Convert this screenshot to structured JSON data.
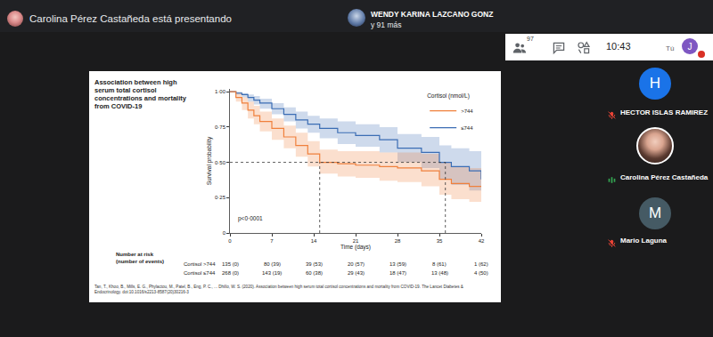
{
  "screen": {
    "presenter_banner": "Carolina Pérez Castañeda está presentando",
    "header_participant": "WENDY KARINA LAZCANO GONZ",
    "header_more": "y 91 más",
    "participant_count": 97,
    "time": "10:43",
    "user_initial": "J",
    "user_label": "Tú",
    "participants": [
      {
        "initial": "H",
        "name": "HECTOR ISLAS RAMIREZ",
        "muted": true
      },
      {
        "name": "Carolina Pérez Castañeda",
        "muted": false
      },
      {
        "initial": "M",
        "name": "Mario Laguna",
        "muted": true
      }
    ]
  },
  "chart_data": {
    "type": "line",
    "title": "Association between high serum total cortisol concentrations and mortality from COVID-19",
    "x_label": "Time (days)",
    "y_label": "Survival probability",
    "x": [
      0,
      1,
      2,
      3,
      4,
      5,
      7,
      9,
      11,
      13,
      15,
      18,
      21,
      25,
      28,
      32,
      35,
      37,
      40,
      42
    ],
    "xlim": [
      0,
      42
    ],
    "xticks": [
      0,
      7,
      14,
      21,
      28,
      35,
      42
    ],
    "ylim": [
      0,
      1.02
    ],
    "yticks": [
      {
        "value": 0,
        "label": "0"
      },
      {
        "value": 0.25,
        "label": "0·25"
      },
      {
        "value": 0.5,
        "label": "0·50"
      },
      {
        "value": 0.75,
        "label": "0·75"
      },
      {
        "value": 1,
        "label": "1·00"
      }
    ],
    "grid": false,
    "legend": "upper right",
    "legend_title": "Cortisol (nmol/L)",
    "series": [
      {
        "name": "≤744",
        "color": "#3b6db4",
        "values": [
          1,
          0.99,
          0.98,
          0.96,
          0.94,
          0.92,
          0.88,
          0.84,
          0.8,
          0.77,
          0.74,
          0.71,
          0.69,
          0.66,
          0.6,
          0.57,
          0.5,
          0.47,
          0.44,
          0.38
        ],
        "ci_lower": [
          1,
          0.98,
          0.96,
          0.93,
          0.91,
          0.88,
          0.84,
          0.79,
          0.74,
          0.71,
          0.67,
          0.63,
          0.61,
          0.57,
          0.5,
          0.46,
          0.38,
          0.34,
          0.3,
          0.22
        ],
        "ci_upper": [
          1,
          1,
          0.99,
          0.98,
          0.97,
          0.95,
          0.92,
          0.89,
          0.86,
          0.83,
          0.81,
          0.79,
          0.77,
          0.75,
          0.7,
          0.68,
          0.62,
          0.6,
          0.58,
          0.54
        ]
      },
      {
        "name": ">744",
        "color": "#f0803c",
        "values": [
          1,
          0.96,
          0.92,
          0.87,
          0.83,
          0.79,
          0.74,
          0.68,
          0.62,
          0.56,
          0.5,
          0.49,
          0.48,
          0.47,
          0.46,
          0.44,
          0.38,
          0.35,
          0.33,
          0.33
        ],
        "ci_lower": [
          1,
          0.93,
          0.87,
          0.81,
          0.77,
          0.72,
          0.66,
          0.6,
          0.54,
          0.47,
          0.42,
          0.4,
          0.39,
          0.37,
          0.36,
          0.33,
          0.27,
          0.24,
          0.22,
          0.22
        ],
        "ci_upper": [
          1,
          0.99,
          0.96,
          0.93,
          0.9,
          0.86,
          0.81,
          0.76,
          0.71,
          0.65,
          0.59,
          0.58,
          0.58,
          0.57,
          0.57,
          0.56,
          0.5,
          0.47,
          0.46,
          0.46
        ]
      }
    ],
    "reference_lines": {
      "y": 0.5,
      "x": [
        15,
        36
      ]
    },
    "annotations": [
      {
        "text": "p<0·0001",
        "x": 1,
        "y": 0.1
      }
    ],
    "risk_table": {
      "title": [
        "Number at risk",
        "(number of events)"
      ],
      "x": [
        0,
        7,
        14,
        21,
        28,
        35,
        42
      ],
      "rows": [
        {
          "label": "Cortisol >744",
          "values": [
            "135 (0)",
            "80 (39)",
            "39 (53)",
            "20 (57)",
            "13 (59)",
            "8 (61)",
            "1 (62)"
          ]
        },
        {
          "label": "Cortisol ≤744",
          "values": [
            "268 (0)",
            "143 (19)",
            "60 (38)",
            "29 (43)",
            "18 (47)",
            "13 (48)",
            "4 (50)"
          ]
        }
      ]
    },
    "source": "Tan, T., Khoo, B., Mills, E. G., Phylactou, M., Patel, B., Eng, P. C., ... Dhillo, W. S. (2020). Association between high serum total cortisol concentrations and mortality from COVID-19. The Lancet Diabetes & Endocrinology. doi:10.1016/s2213-8587(20)30216-3"
  }
}
